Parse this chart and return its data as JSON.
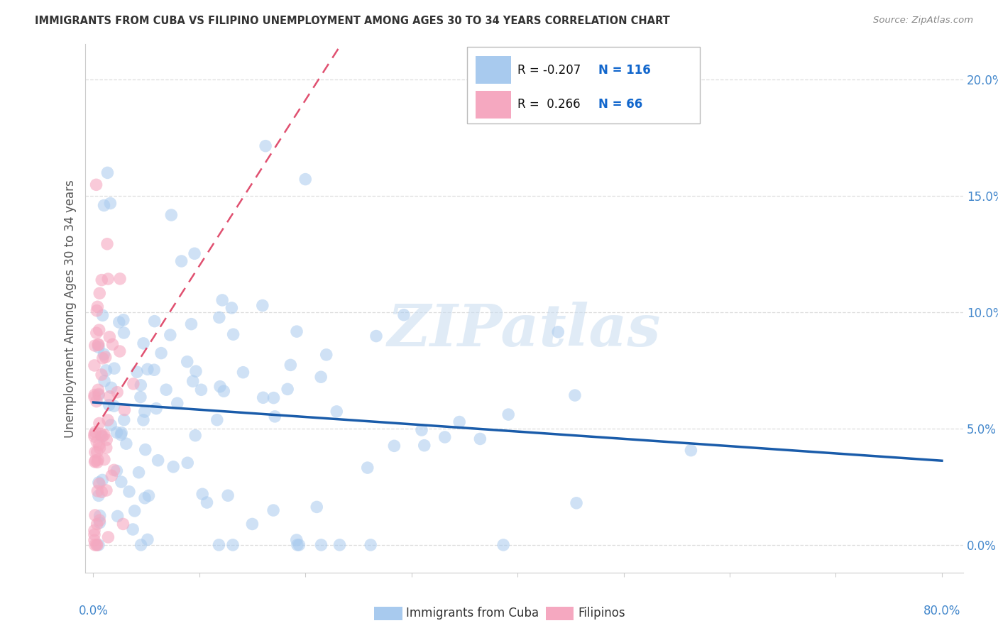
{
  "title": "IMMIGRANTS FROM CUBA VS FILIPINO UNEMPLOYMENT AMONG AGES 30 TO 34 YEARS CORRELATION CHART",
  "source": "Source: ZipAtlas.com",
  "ylabel": "Unemployment Among Ages 30 to 34 years",
  "ytick_labels": [
    "0.0%",
    "5.0%",
    "10.0%",
    "15.0%",
    "20.0%"
  ],
  "ytick_values": [
    0.0,
    0.05,
    0.1,
    0.15,
    0.2
  ],
  "xlim": [
    -0.008,
    0.82
  ],
  "ylim": [
    -0.012,
    0.215
  ],
  "blue_R": -0.207,
  "blue_N": 116,
  "pink_R": 0.266,
  "pink_N": 66,
  "blue_color": "#A8CAEE",
  "pink_color": "#F5A8C0",
  "blue_line_color": "#1A5CAA",
  "pink_line_color": "#E05070",
  "legend_label_blue": "Immigrants from Cuba",
  "legend_label_pink": "Filipinos",
  "watermark_text": "ZIPatlas",
  "background_color": "#FFFFFF",
  "grid_color": "#DDDDDD",
  "axis_label_color": "#4488CC",
  "title_color": "#333333",
  "source_color": "#888888",
  "ylabel_color": "#555555"
}
